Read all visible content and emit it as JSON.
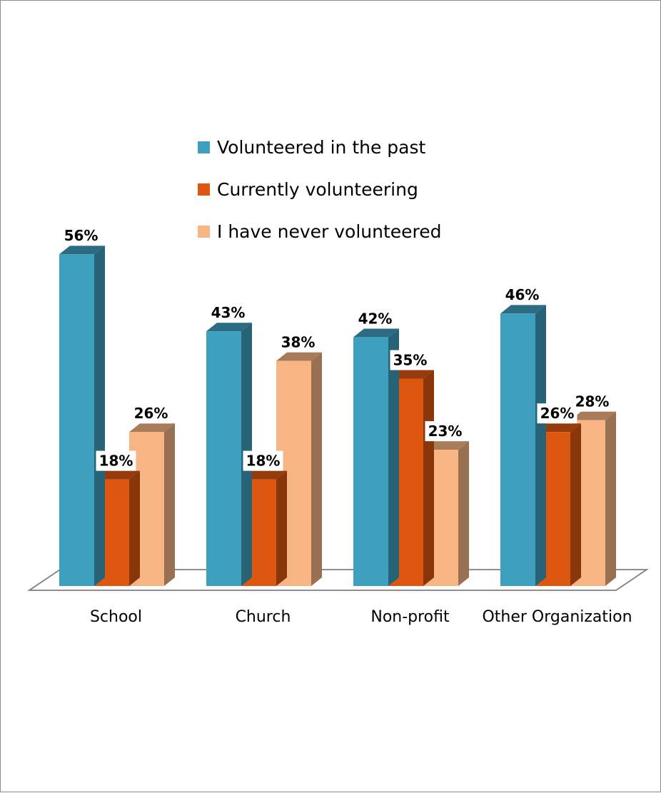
{
  "chart_data": {
    "type": "bar",
    "categories": [
      "School",
      "Church",
      "Non-profit",
      "Other Organization"
    ],
    "series": [
      {
        "name": "Volunteered in the past",
        "values": [
          56,
          43,
          42,
          46
        ],
        "color": "#3f9fbf"
      },
      {
        "name": "Currently volunteering",
        "values": [
          18,
          18,
          35,
          26
        ],
        "color": "#dd5710"
      },
      {
        "name": "I have never volunteered",
        "values": [
          26,
          38,
          23,
          28
        ],
        "color": "#f7b583"
      }
    ],
    "value_suffix": "%",
    "style": "3d-clustered-column",
    "legend_position": "top-center",
    "gridlines": false,
    "value_axis_visible": false
  }
}
